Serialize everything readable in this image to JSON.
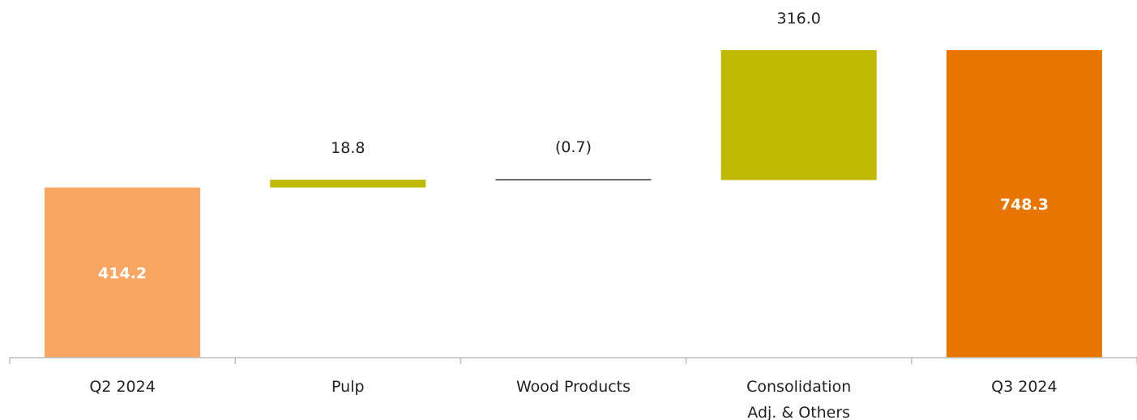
{
  "chart_data": {
    "type": "waterfall",
    "categories": [
      [
        "Q2 2024"
      ],
      [
        "Pulp"
      ],
      [
        "Wood Products"
      ],
      [
        "Consolidation",
        "Adj. & Others"
      ],
      [
        "Q3 2024"
      ]
    ],
    "values": [
      414.2,
      18.8,
      -0.7,
      316.0,
      748.3
    ],
    "kinds": [
      "total",
      "delta",
      "delta",
      "delta",
      "total"
    ],
    "labels": [
      "414.2",
      "18.8",
      "(0.7)",
      "316.0",
      "748.3"
    ],
    "label_inside": [
      true,
      false,
      false,
      false,
      true
    ],
    "colors": {
      "start_total": "#F9A662",
      "increase": "#BFBA00",
      "decrease": "#666666",
      "end_total": "#E87500",
      "axis": "#BFBFBF"
    },
    "title": "",
    "xlabel": "",
    "ylabel": "",
    "ylim": [
      0,
      800
    ],
    "grid": false,
    "legend": "none"
  }
}
